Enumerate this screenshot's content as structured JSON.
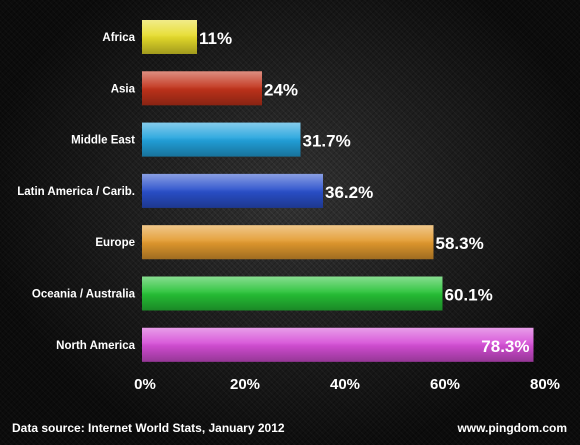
{
  "chart_data": {
    "type": "bar",
    "orientation": "horizontal",
    "categories": [
      "Africa",
      "Asia",
      "Middle East",
      "Latin America / Carib.",
      "Europe",
      "Oceania / Australia",
      "North America"
    ],
    "values": [
      11,
      24,
      31.7,
      36.2,
      58.3,
      60.1,
      78.3
    ],
    "value_labels": [
      "11%",
      "24%",
      "31.7%",
      "36.2%",
      "58.3%",
      "60.1%",
      "78.3%"
    ],
    "colors": [
      "#e6dc2a",
      "#c2331b",
      "#22a3dd",
      "#2a50cc",
      "#e39a2e",
      "#26c236",
      "#d54ed6"
    ],
    "xlim": [
      0,
      80
    ],
    "xticks": [
      0,
      20,
      40,
      60,
      80
    ],
    "xtick_labels": [
      "0%",
      "20%",
      "40%",
      "60%",
      "80%"
    ],
    "grid": false,
    "legend": "none"
  },
  "footer": {
    "source": "Data source: Internet World Stats, January 2012",
    "site": "www.pingdom.com"
  }
}
